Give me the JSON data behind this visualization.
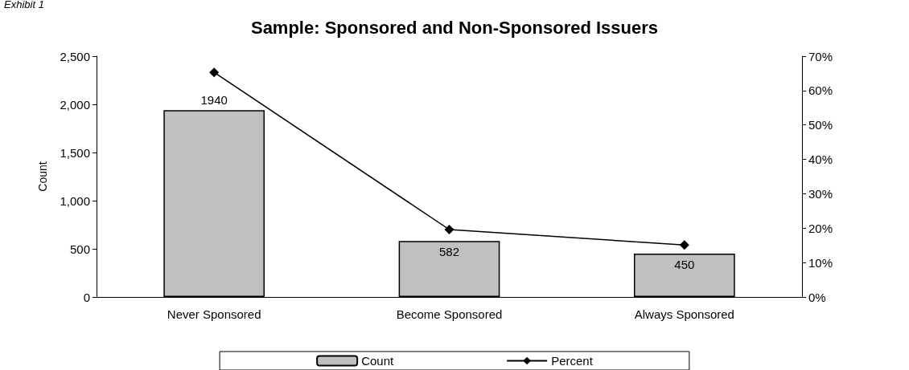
{
  "chart_data": {
    "type": "bar",
    "title": "Sample: Sponsored and Non-Sponsored Issuers",
    "annotations": [
      "Exhibit 1"
    ],
    "ylabel": "Count",
    "categories": [
      "Never Sponsored",
      "Become Sponsored",
      "Always Sponsored"
    ],
    "series": [
      {
        "name": "Count",
        "color": "#c0c0c0",
        "values": [
          1940,
          582,
          450
        ],
        "value_labels": [
          "1940",
          "582",
          "450"
        ]
      },
      {
        "name": "Percent",
        "type": "line",
        "axis": "y2",
        "color": "#000000",
        "marker": "diamond",
        "values": [
          65.3,
          19.6,
          15.1
        ]
      }
    ],
    "ylim": [
      0,
      2500
    ],
    "yticks": [
      {
        "value": 0,
        "label": "0"
      },
      {
        "value": 500,
        "label": "500"
      },
      {
        "value": 1000,
        "label": "1,000"
      },
      {
        "value": 1500,
        "label": "1,500"
      },
      {
        "value": 2000,
        "label": "2,000"
      },
      {
        "value": 2500,
        "label": "2,500"
      }
    ],
    "y2lim": [
      0,
      70
    ],
    "y2ticks": [
      {
        "value": 0,
        "label": "0%"
      },
      {
        "value": 10,
        "label": "10%"
      },
      {
        "value": 20,
        "label": "20%"
      },
      {
        "value": 30,
        "label": "30%"
      },
      {
        "value": 40,
        "label": "40%"
      },
      {
        "value": 50,
        "label": "50%"
      },
      {
        "value": 60,
        "label": "60%"
      },
      {
        "value": 70,
        "label": "70%"
      }
    ],
    "grid": false,
    "legend": "bottom"
  }
}
